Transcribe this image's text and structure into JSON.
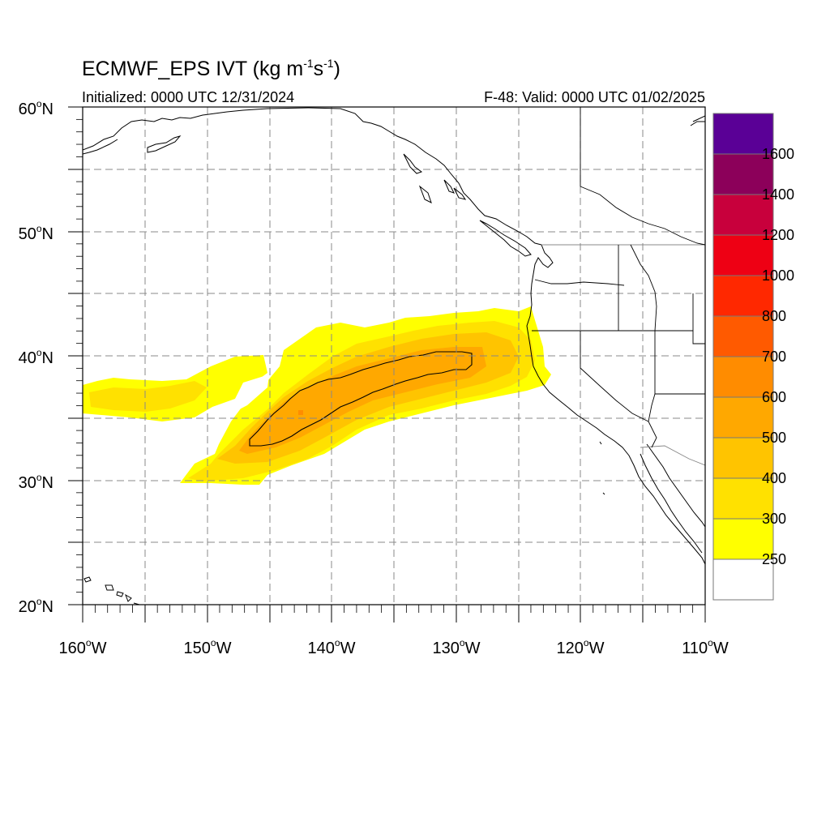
{
  "title": {
    "main": "ECMWF_EPS IVT (kg m",
    "exp1": "-1",
    "mid": "s",
    "exp2": "-1",
    "end": ")"
  },
  "subtitle_left": "Initialized: 0000 UTC 12/31/2024",
  "subtitle_right": "F-48: Valid: 0000 UTC 01/02/2025",
  "degree_symbol": "o",
  "map": {
    "lon_range": [
      -160,
      -110
    ],
    "lat_range": [
      20,
      60
    ],
    "lat_labels": [
      {
        "num": "60",
        "hemi": "N"
      },
      {
        "num": "50",
        "hemi": "N"
      },
      {
        "num": "40",
        "hemi": "N"
      },
      {
        "num": "30",
        "hemi": "N"
      },
      {
        "num": "20",
        "hemi": "N"
      }
    ],
    "lon_labels": [
      {
        "num": "160",
        "hemi": "W"
      },
      {
        "num": "150",
        "hemi": "W"
      },
      {
        "num": "140",
        "hemi": "W"
      },
      {
        "num": "130",
        "hemi": "W"
      },
      {
        "num": "120",
        "hemi": "W"
      },
      {
        "num": "110",
        "hemi": "W"
      }
    ],
    "gridlines": "dashed every 5 degrees"
  },
  "colorbar": {
    "labels": [
      "250",
      "300",
      "400",
      "500",
      "600",
      "700",
      "800",
      "1000",
      "1200",
      "1400",
      "1600"
    ],
    "colors": [
      "#ffffff",
      "#ffff00",
      "#ffe100",
      "#ffc400",
      "#ffa800",
      "#ff8c00",
      "#ff5a00",
      "#ff2800",
      "#ee0014",
      "#c8003c",
      "#8c005a",
      "#5a0096"
    ]
  },
  "ivt_levels_shown": [
    "250",
    "300",
    "400",
    "500",
    "600"
  ],
  "contour_level": "600"
}
